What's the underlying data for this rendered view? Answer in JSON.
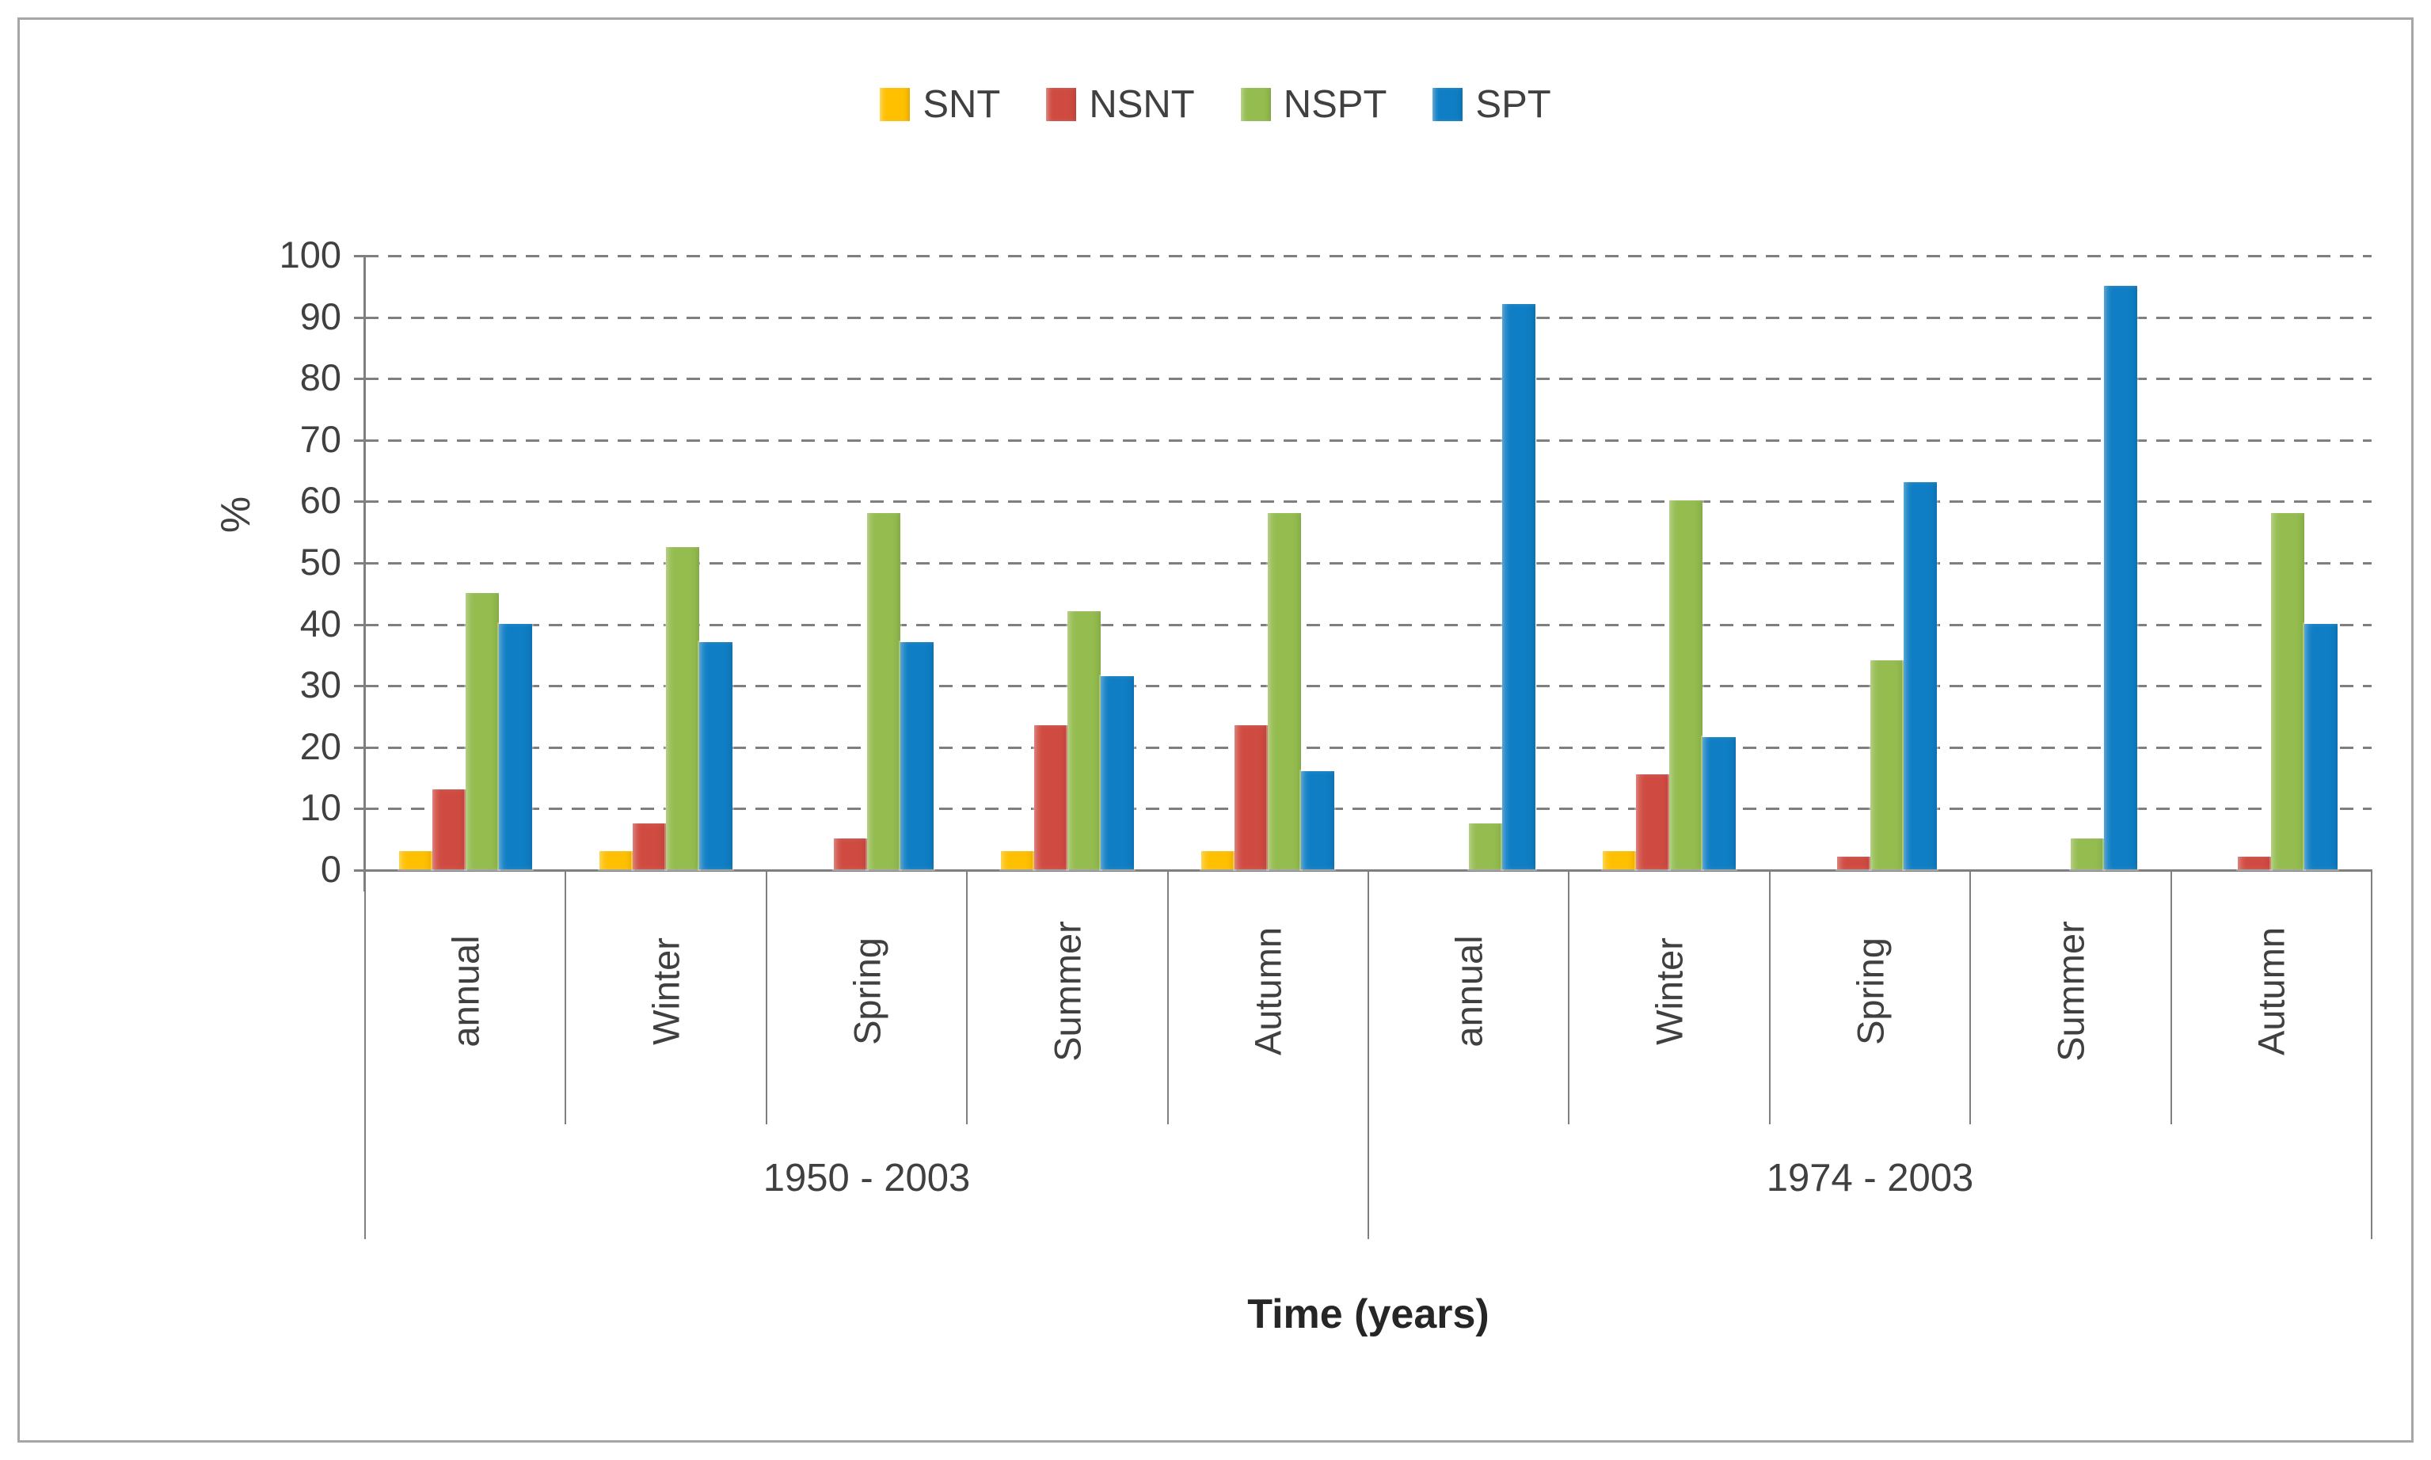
{
  "figure": {
    "background": "#ffffff",
    "frame_border_color": "#a6a6a6",
    "gridline_color": "#7f7f7f",
    "text_color": "#404040"
  },
  "chart_data": {
    "type": "bar",
    "title": "",
    "xlabel": "Time (years)",
    "ylabel": "%",
    "ylim": [
      0,
      100
    ],
    "ytick_step": 10,
    "yticks": [
      100,
      90,
      80,
      70,
      60,
      50,
      40,
      30,
      20,
      10,
      0
    ],
    "grid": "horizontal dashed",
    "legend_position": "top-center",
    "group_labels": [
      "1950 - 2003",
      "1974 - 2003"
    ],
    "categories": [
      "annual",
      "Winter",
      "Spring",
      "Summer",
      "Autumn",
      "annual",
      "Winter",
      "Spring",
      "Summer",
      "Autumn"
    ],
    "category_groups": [
      0,
      0,
      0,
      0,
      0,
      1,
      1,
      1,
      1,
      1
    ],
    "series": [
      {
        "name": "SNT",
        "color": "#ffc000",
        "values": [
          3,
          3,
          0,
          3,
          3,
          0,
          3,
          0,
          0,
          0
        ]
      },
      {
        "name": "NSNT",
        "color": "#cf4b41",
        "values": [
          13,
          7.5,
          5,
          23.5,
          23.5,
          0,
          15.5,
          2,
          0,
          2
        ]
      },
      {
        "name": "NSPT",
        "color": "#94bc4f",
        "values": [
          45,
          52.5,
          58,
          42,
          58,
          7.5,
          60,
          34,
          5,
          58
        ]
      },
      {
        "name": "SPT",
        "color": "#0f7ec4",
        "values": [
          40,
          37,
          37,
          31.5,
          16,
          92,
          21.5,
          63,
          95,
          40
        ]
      }
    ]
  }
}
